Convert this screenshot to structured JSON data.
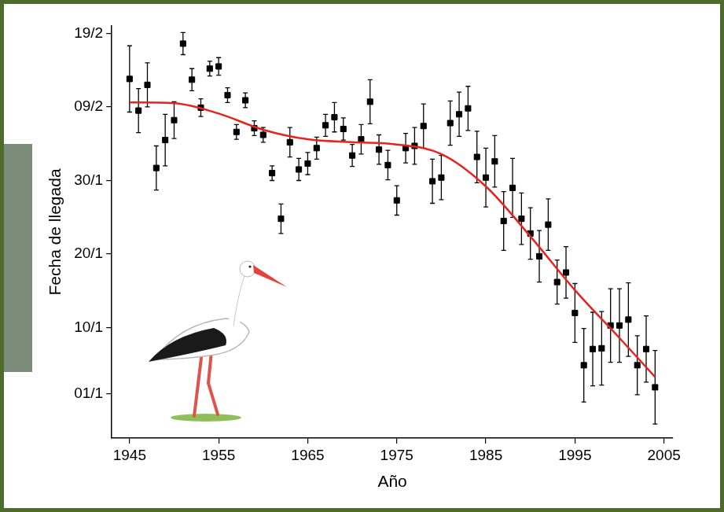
{
  "chart_data": {
    "type": "scatter",
    "x_label": "Año",
    "y_label": "Fecha de llegada",
    "xlim": [
      1943,
      2006
    ],
    "xticks": [
      1945,
      1955,
      1965,
      1975,
      1985,
      1995,
      2005
    ],
    "ylim": [
      -5,
      51
    ],
    "yticks": [
      {
        "value": 1,
        "label": "01/1"
      },
      {
        "value": 10,
        "label": "10/1"
      },
      {
        "value": 20,
        "label": "20/1"
      },
      {
        "value": 30,
        "label": "30/1"
      },
      {
        "value": 40,
        "label": "09/2"
      },
      {
        "value": 50,
        "label": "19/2"
      }
    ],
    "grid": false,
    "series": [
      {
        "type": "scatter",
        "color": "#000000",
        "marker": "square",
        "x": [
          1945,
          1946,
          1947,
          1948,
          1949,
          1950,
          1951,
          1952,
          1953,
          1954,
          1955,
          1956,
          1957,
          1958,
          1959,
          1960,
          1961,
          1962,
          1963,
          1964,
          1965,
          1966,
          1967,
          1968,
          1969,
          1970,
          1971,
          1972,
          1973,
          1974,
          1975,
          1976,
          1977,
          1978,
          1979,
          1980,
          1981,
          1982,
          1983,
          1984,
          1985,
          1986,
          1987,
          1988,
          1989,
          1990,
          1991,
          1992,
          1993,
          1994,
          1995,
          1996,
          1997,
          1998,
          1999,
          2000,
          2001,
          2002,
          2003,
          2004
        ],
        "values": [
          43.8,
          39.5,
          43.0,
          31.7,
          35.5,
          38.2,
          48.6,
          43.7,
          39.9,
          45.2,
          45.5,
          41.6,
          36.6,
          40.9,
          37.1,
          36.2,
          31.0,
          24.8,
          35.2,
          31.5,
          32.3,
          34.4,
          37.5,
          38.6,
          37.0,
          33.4,
          35.6,
          40.7,
          34.2,
          32.1,
          27.3,
          34.4,
          34.7,
          37.4,
          29.9,
          30.4,
          37.8,
          39.0,
          39.8,
          33.2,
          30.4,
          32.6,
          24.5,
          29.0,
          24.8,
          22.8,
          19.7,
          24.0,
          16.2,
          17.5,
          12.0,
          4.9,
          7.1,
          7.2,
          10.3,
          10.3,
          11.1,
          4.9,
          7.1,
          1.9
        ],
        "errors": [
          4.5,
          3,
          3,
          3,
          3.5,
          2.5,
          1.5,
          1.5,
          1.2,
          1,
          1.2,
          1,
          1,
          1,
          1,
          1,
          1,
          2,
          2,
          1.5,
          1.5,
          1.5,
          1.5,
          2,
          1.5,
          1.5,
          2,
          3,
          2,
          2,
          2,
          2,
          2.5,
          3,
          3,
          3,
          3,
          3,
          3,
          3.5,
          4,
          3.5,
          4,
          4,
          3.5,
          3.5,
          3.5,
          3.5,
          3,
          3.5,
          4,
          5,
          5,
          5,
          5,
          5,
          5,
          4,
          4.5,
          5
        ]
      },
      {
        "type": "line",
        "color": "#e8231e",
        "line_style": "solid",
        "x": [
          1945,
          1950,
          1955,
          1960,
          1965,
          1970,
          1975,
          1980,
          1985,
          1990,
          1995,
          2000,
          2004
        ],
        "values": [
          40.6,
          40.5,
          39.1,
          36.9,
          35.6,
          35.2,
          34.9,
          33.6,
          29.2,
          22.4,
          15.1,
          8.6,
          3.3
        ]
      }
    ]
  }
}
